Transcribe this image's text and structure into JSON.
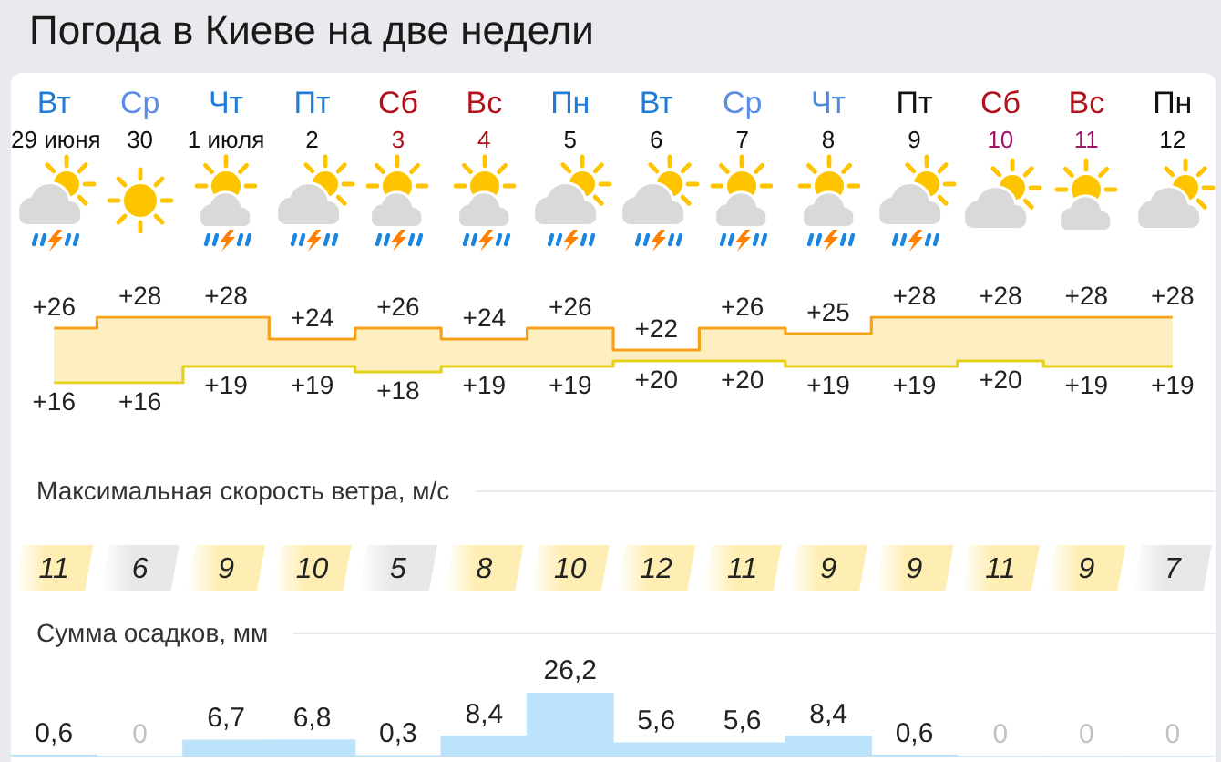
{
  "chart_data": [
    {
      "type": "step",
      "title": "Погода в Киеве на две недели",
      "categories": [
        "Вт\n29 июня",
        "Ср\n30",
        "Чт\n1 июля",
        "Пт\n2",
        "Сб\n3",
        "Вс\n4",
        "Пн\n5",
        "Вт\n6",
        "Ср\n7",
        "Чт\n8",
        "Пт\n9",
        "Сб\n10",
        "Вс\n11",
        "Пн\n12"
      ],
      "tick_labels": "x",
      "series": [
        {
          "color": "#f7a11a",
          "values": [
            26,
            28,
            28,
            24,
            26,
            24,
            26,
            22,
            26,
            25,
            28,
            28,
            28,
            28
          ],
          "value_labels": [
            "+26",
            "+28",
            "+28",
            "+24",
            "+26",
            "+24",
            "+26",
            "+22",
            "+26",
            "+25",
            "+28",
            "+28",
            "+28",
            "+28"
          ],
          "lower": [
            16,
            16,
            19,
            19,
            18,
            19,
            19,
            20,
            20,
            19,
            19,
            20,
            19,
            19
          ],
          "upper": [
            26,
            28,
            28,
            24,
            26,
            24,
            26,
            22,
            26,
            25,
            28,
            28,
            28,
            28
          ]
        },
        {
          "color": "#e3d11b",
          "values": [
            16,
            16,
            19,
            19,
            18,
            19,
            19,
            20,
            20,
            19,
            19,
            20,
            19,
            19
          ],
          "value_labels": [
            "+16",
            "+16",
            "+19",
            "+19",
            "+18",
            "+19",
            "+19",
            "+20",
            "+20",
            "+19",
            "+19",
            "+20",
            "+19",
            "+19"
          ]
        }
      ]
    },
    {
      "type": "other",
      "title": "Максимальная скорость ветра, м/с",
      "data_labels": true,
      "values": [
        11,
        6,
        9,
        10,
        5,
        8,
        10,
        12,
        11,
        9,
        9,
        11,
        9,
        7
      ],
      "colors": [
        "#feeeb3",
        "#e7e8ea",
        "#feeeb3",
        "#feeeb3",
        "#e7e8ea",
        "#feeeb3",
        "#feeeb3",
        "#feeeb3",
        "#feeeb3",
        "#feeeb3",
        "#feeeb3",
        "#feeeb3",
        "#feeeb3",
        "#e7e8ea"
      ]
    },
    {
      "type": "bar",
      "title": "Сумма осадков, мм",
      "categories": [
        null,
        null,
        null,
        null,
        null,
        null,
        null,
        null,
        null,
        null,
        null,
        null,
        null,
        null
      ],
      "tick_labels": false,
      "color": "#bde3fb",
      "values": [
        0.6,
        0,
        6.7,
        6.8,
        0.3,
        8.4,
        26.2,
        5.6,
        5.6,
        8.4,
        0.6,
        0,
        0,
        0
      ],
      "value_labels": [
        "0,6",
        "0",
        "6,7",
        "6,8",
        "0,3",
        "8,4",
        "26,2",
        "5,6",
        "5,6",
        "8,4",
        "0,6",
        "0",
        "0",
        "0"
      ]
    }
  ]
}
